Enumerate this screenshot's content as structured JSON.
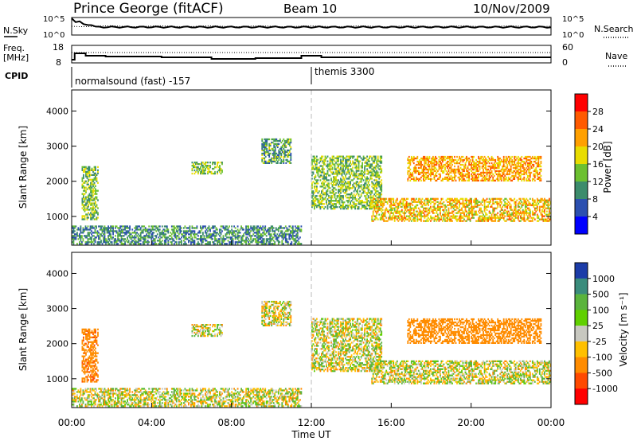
{
  "header": {
    "station": "Prince George (fitACF)",
    "beam": "Beam 10",
    "date": "10/Nov/2009"
  },
  "noise_panel": {
    "left_label": "N.Sky",
    "right_label": "N.Search",
    "ticks_left": [
      "10^5",
      "10^0"
    ],
    "ticks_right": [
      "10^5",
      "10^0"
    ]
  },
  "freq_panel": {
    "left_label_line1": "Freq.",
    "left_label_line2": "[MHz]",
    "right_label": "Nave",
    "ticks_left": [
      "18",
      "8"
    ],
    "ticks_right": [
      "60",
      "0"
    ]
  },
  "cpid_panel": {
    "label": "CPID",
    "modes": [
      {
        "name": "normalsound (fast) -157",
        "start_hour": 0
      },
      {
        "name": "themis 3300",
        "start_hour": 12
      }
    ]
  },
  "power_panel": {
    "ylabel": "Slant Range [km]",
    "cbar_label": "Power [dB]",
    "cbar_ticks": [
      "28",
      "24",
      "20",
      "16",
      "12",
      "8",
      "4"
    ],
    "cbar_colors": [
      "#ff0000",
      "#ff5a00",
      "#ffa000",
      "#e8dc00",
      "#6cc030",
      "#3c8c6c",
      "#2c50b0",
      "#0000ff"
    ]
  },
  "velocity_panel": {
    "ylabel": "Slant Range [km]",
    "cbar_label": "Velocity [m s⁻¹]",
    "cbar_ticks": [
      "1000",
      "500",
      "100",
      "25",
      "-25",
      "-100",
      "-500",
      "-1000"
    ],
    "cbar_colors": [
      "#1c3ca8",
      "#3a8c7c",
      "#5ab43c",
      "#60d000",
      "#c8c8c0",
      "#ffc000",
      "#ff8c00",
      "#ff4a00",
      "#ff0000"
    ]
  },
  "xaxis": {
    "label": "Time UT",
    "ticks": [
      "00:00",
      "04:00",
      "08:00",
      "12:00",
      "16:00",
      "20:00",
      "00:00"
    ]
  },
  "chart_data": {
    "type": "heatmap",
    "x_unit": "hours UT",
    "xlim": [
      0,
      24
    ],
    "ylim_km": [
      180,
      4600
    ],
    "yticks": [
      1000,
      2000,
      3000,
      4000
    ],
    "panels": [
      {
        "name": "Power [dB]",
        "range": [
          0,
          30
        ],
        "echo_regions": [
          {
            "t": [
              0.5,
              1.3
            ],
            "r": [
              900,
              2400
            ],
            "value": 14
          },
          {
            "t": [
              0,
              11.5
            ],
            "r": [
              200,
              700
            ],
            "value": 10
          },
          {
            "t": [
              6.0,
              7.5
            ],
            "r": [
              2200,
              2550
            ],
            "value": 14
          },
          {
            "t": [
              9.5,
              11.0
            ],
            "r": [
              2500,
              3200
            ],
            "value": 12
          },
          {
            "t": [
              12.0,
              15.5
            ],
            "r": [
              1200,
              2700
            ],
            "value": 14
          },
          {
            "t": [
              15.0,
              24.0
            ],
            "r": [
              850,
              1500
            ],
            "value": 20
          },
          {
            "t": [
              16.8,
              23.5
            ],
            "r": [
              2000,
              2700
            ],
            "value": 22
          }
        ]
      },
      {
        "name": "Velocity [m s-1]",
        "range": [
          -1000,
          1000
        ],
        "echo_regions": [
          {
            "t": [
              0.5,
              1.3
            ],
            "r": [
              900,
              2400
            ],
            "value": -400
          },
          {
            "t": [
              0,
              11.5
            ],
            "r": [
              200,
              700
            ],
            "value": 0
          },
          {
            "t": [
              6.0,
              7.5
            ],
            "r": [
              2200,
              2550
            ],
            "value": 0
          },
          {
            "t": [
              9.5,
              11.0
            ],
            "r": [
              2500,
              3200
            ],
            "value": 0
          },
          {
            "t": [
              12.0,
              15.5
            ],
            "r": [
              1200,
              2700
            ],
            "value": 0
          },
          {
            "t": [
              15.0,
              24.0
            ],
            "r": [
              850,
              1500
            ],
            "value": 0
          },
          {
            "t": [
              16.8,
              23.5
            ],
            "r": [
              2000,
              2700
            ],
            "value": -300
          }
        ]
      }
    ]
  }
}
